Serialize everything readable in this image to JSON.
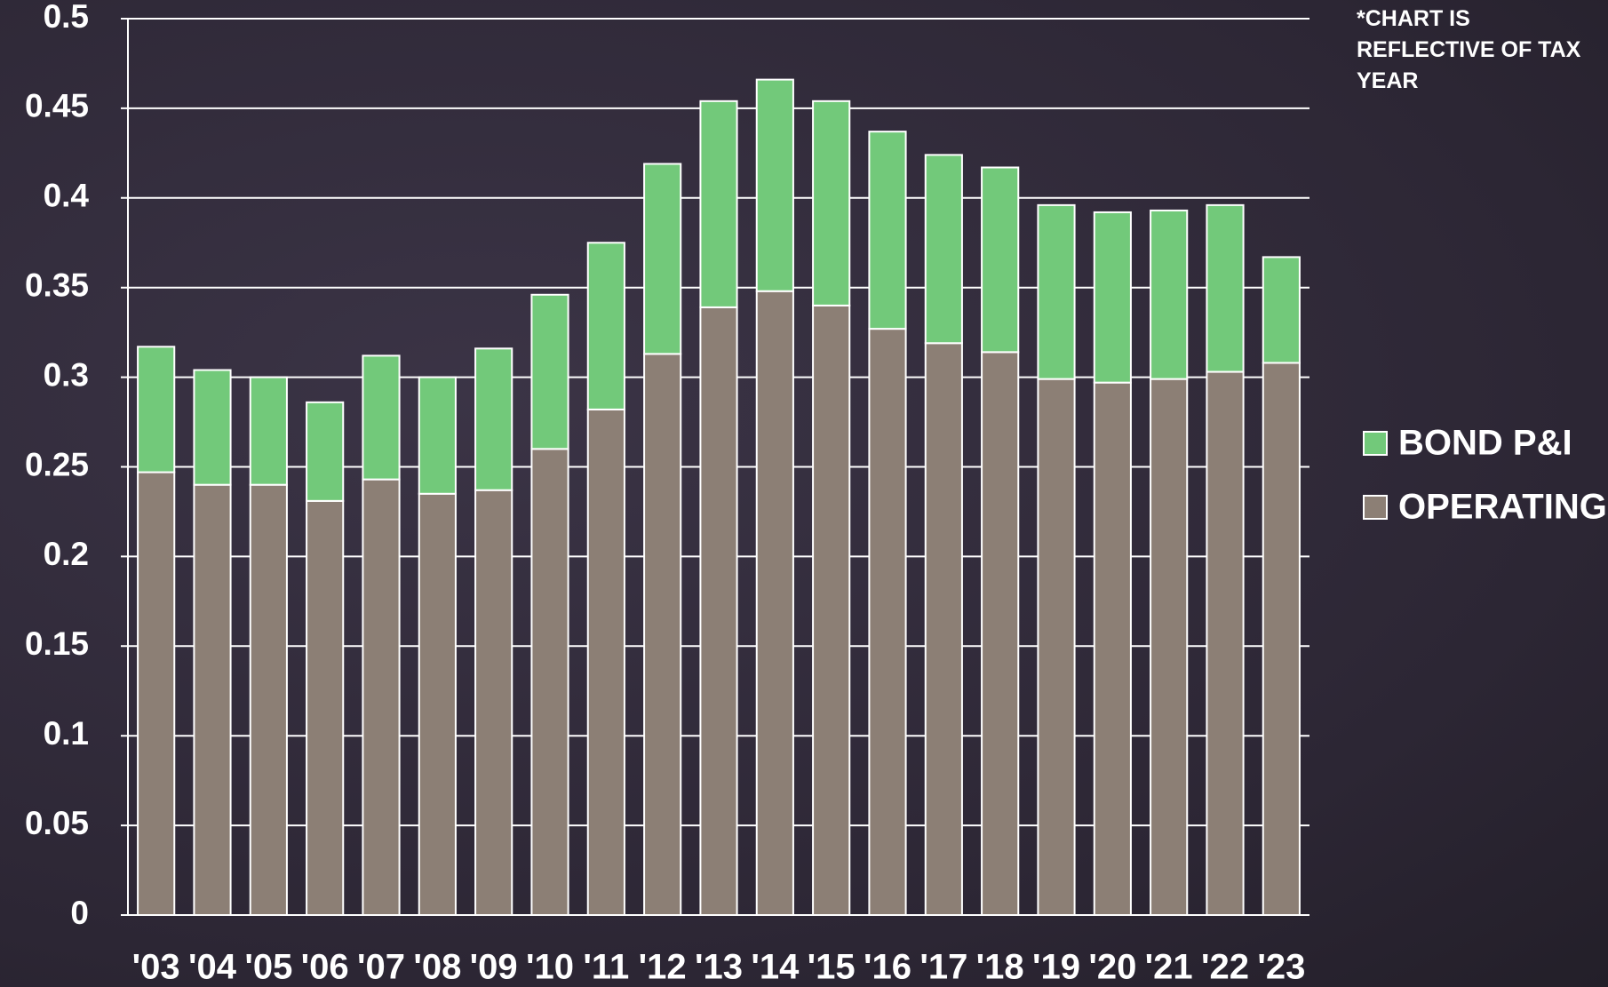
{
  "chart_data": {
    "type": "stacked_bar",
    "annotation": "*CHART IS REFLECTIVE OF TAX YEAR",
    "categories": [
      "'03",
      "'04",
      "'05",
      "'06",
      "'07",
      "'08",
      "'09",
      "'10",
      "'11",
      "'12",
      "'13",
      "'14",
      "'15",
      "'16",
      "'17",
      "'18",
      "'19",
      "'20",
      "'21",
      "'22",
      "'23"
    ],
    "series": [
      {
        "name": "OPERATING",
        "color": "#8c7f75",
        "values": [
          0.247,
          0.24,
          0.24,
          0.231,
          0.243,
          0.235,
          0.237,
          0.26,
          0.282,
          0.313,
          0.339,
          0.348,
          0.34,
          0.327,
          0.319,
          0.314,
          0.299,
          0.297,
          0.299,
          0.303,
          0.308
        ]
      },
      {
        "name": "BOND P&I",
        "color": "#72c97a",
        "values": [
          0.07,
          0.064,
          0.06,
          0.055,
          0.069,
          0.065,
          0.079,
          0.086,
          0.093,
          0.106,
          0.115,
          0.118,
          0.114,
          0.11,
          0.105,
          0.103,
          0.097,
          0.095,
          0.094,
          0.093,
          0.059
        ]
      }
    ],
    "ylim": [
      0,
      0.5
    ],
    "yticks": [
      0,
      0.05,
      0.1,
      0.15,
      0.2,
      0.25,
      0.3,
      0.35,
      0.4,
      0.45,
      0.5
    ],
    "grid": true,
    "legend": "right"
  }
}
